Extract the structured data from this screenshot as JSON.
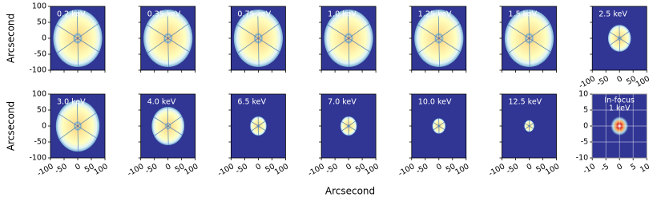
{
  "chart_data": {
    "type": "image-grid",
    "xlabel": "Arcsecond",
    "ylabel": "Arcsecond",
    "xlim": [
      -100,
      100
    ],
    "ylim": [
      -100,
      100
    ],
    "xticks": [
      -100,
      -50,
      0,
      50,
      100
    ],
    "yticks": [
      -100,
      -50,
      0,
      50,
      100
    ],
    "panels": [
      {
        "title": "0.2 keV"
      },
      {
        "title": "0.35 keV"
      },
      {
        "title": "0.75 keV"
      },
      {
        "title": "1.0 keV"
      },
      {
        "title": "1.25 keV"
      },
      {
        "title": "1.5 keV"
      },
      {
        "title": "2.5 keV"
      },
      {
        "title": "3.0 keV"
      },
      {
        "title": "4.0 keV"
      },
      {
        "title": "6.5 keV"
      },
      {
        "title": "7.0 keV"
      },
      {
        "title": "10.0 keV"
      },
      {
        "title": "12.5 keV"
      }
    ],
    "focus": {
      "title": [
        "In-focus",
        "1 keV"
      ],
      "xlim": [
        -10,
        10
      ],
      "ylim": [
        -10,
        10
      ],
      "xticks": [
        -10,
        -5,
        0,
        5,
        10
      ],
      "yticks": [
        -10,
        -5,
        0,
        5,
        10
      ],
      "grid": true
    }
  }
}
